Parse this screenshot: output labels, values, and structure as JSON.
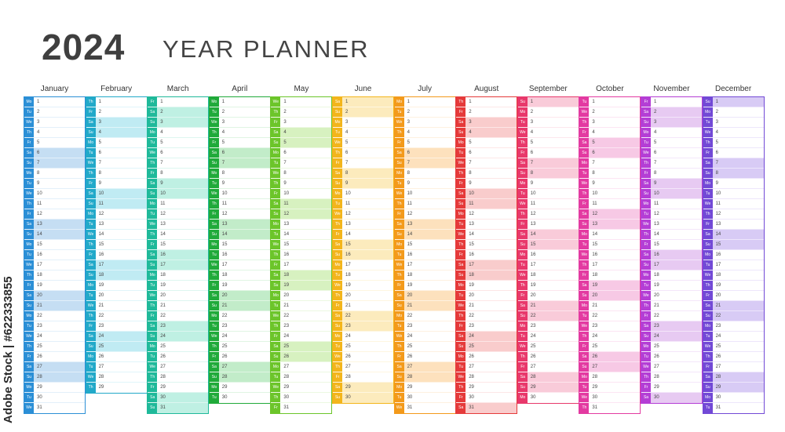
{
  "header": {
    "year": "2024",
    "label": "YEAR PLANNER"
  },
  "watermark": {
    "text": "Adobe Stock | #622333855"
  },
  "weekdays": [
    "Mo",
    "Tu",
    "We",
    "Th",
    "Fr",
    "Sa",
    "Su"
  ],
  "months": [
    {
      "name": "January",
      "days": 31,
      "start": 0,
      "color": "#2b8fd6",
      "light": "#e3f0fa",
      "weekend": "#c5def3"
    },
    {
      "name": "February",
      "days": 29,
      "start": 3,
      "color": "#22a9c9",
      "light": "#e0f5fa",
      "weekend": "#c0ebf3"
    },
    {
      "name": "March",
      "days": 31,
      "start": 4,
      "color": "#1fb99a",
      "light": "#ddf6f0",
      "weekend": "#bff0e3"
    },
    {
      "name": "April",
      "days": 30,
      "start": 0,
      "color": "#20aa3a",
      "light": "#e0f5e3",
      "weekend": "#c2ecc9"
    },
    {
      "name": "May",
      "days": 31,
      "start": 2,
      "color": "#6cc52a",
      "light": "#ecf8e1",
      "weekend": "#d7f1c0"
    },
    {
      "name": "June",
      "days": 30,
      "start": 5,
      "color": "#f3b51b",
      "light": "#fef6e0",
      "weekend": "#fcebbd"
    },
    {
      "name": "July",
      "days": 31,
      "start": 0,
      "color": "#f39a1b",
      "light": "#fef1e0",
      "weekend": "#fde1bd"
    },
    {
      "name": "August",
      "days": 31,
      "start": 3,
      "color": "#e53a3a",
      "light": "#fde6e6",
      "weekend": "#f9cccc"
    },
    {
      "name": "September",
      "days": 30,
      "start": 6,
      "color": "#e8386b",
      "light": "#fde6ed",
      "weekend": "#f9cbd9"
    },
    {
      "name": "October",
      "days": 31,
      "start": 1,
      "color": "#e33aa1",
      "light": "#fce5f3",
      "weekend": "#f7c9e5"
    },
    {
      "name": "November",
      "days": 30,
      "start": 4,
      "color": "#b43ed5",
      "light": "#f4e6fa",
      "weekend": "#e7caf2"
    },
    {
      "name": "December",
      "days": 31,
      "start": 6,
      "color": "#7249d6",
      "light": "#ede6fb",
      "weekend": "#d8cbf5"
    }
  ]
}
